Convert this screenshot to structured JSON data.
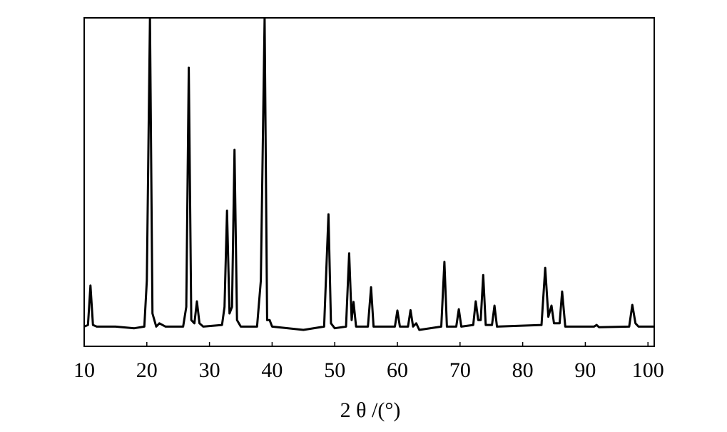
{
  "chart_data": {
    "type": "line",
    "xlabel": "2 θ /(°)",
    "color": "#000000",
    "xlim": [
      10,
      101
    ],
    "ylim": [
      0,
      100
    ],
    "xticks": [
      10,
      20,
      30,
      40,
      50,
      60,
      70,
      80,
      90,
      100
    ],
    "x": [
      10,
      10.6,
      11,
      11.4,
      12,
      15,
      18,
      19.6,
      20,
      20.5,
      20.9,
      21.5,
      22,
      23,
      25.8,
      26.3,
      26.7,
      27.1,
      27.6,
      28,
      28.4,
      29,
      32,
      32.4,
      32.8,
      33.2,
      33.6,
      34,
      34.4,
      35,
      37.6,
      38.2,
      38.8,
      39.2,
      39.6,
      40,
      45,
      48.3,
      49,
      49.4,
      50,
      51.8,
      52.3,
      52.7,
      53,
      53.4,
      55.3,
      55.8,
      56.2,
      59.6,
      60,
      60.4,
      61.7,
      62.1,
      62.5,
      63,
      63.5,
      67,
      67.5,
      67.9,
      69.4,
      69.8,
      70.2,
      72.1,
      72.5,
      72.9,
      73.3,
      73.7,
      74.1,
      75.1,
      75.5,
      75.9,
      83,
      83.6,
      84.1,
      84.6,
      85,
      85.9,
      86.3,
      86.8,
      91.4,
      91.8,
      92.2,
      97,
      97.5,
      98,
      98.5,
      101
    ],
    "values": [
      6,
      6.5,
      18.5,
      6.5,
      6,
      6,
      5.5,
      6,
      20,
      100,
      10,
      6,
      7,
      6,
      6,
      12,
      84.8,
      8,
      7,
      13.7,
      7,
      6,
      6.5,
      12,
      41.3,
      10,
      12,
      59.8,
      8,
      6,
      6,
      20,
      100,
      8,
      8,
      6,
      5,
      6,
      40.2,
      7,
      5.5,
      6,
      28.3,
      8,
      13.5,
      6,
      6,
      18,
      6,
      6,
      10.9,
      6,
      6,
      11,
      6,
      7,
      5,
      6,
      25.7,
      6,
      6,
      11.3,
      6,
      6.5,
      13.7,
      8,
      8,
      21.7,
      6.5,
      6.5,
      12.4,
      6,
      6.5,
      23.9,
      9,
      12.4,
      7,
      7,
      16.7,
      6,
      6,
      6.5,
      5.8,
      6,
      12.6,
      7,
      6,
      6
    ]
  }
}
